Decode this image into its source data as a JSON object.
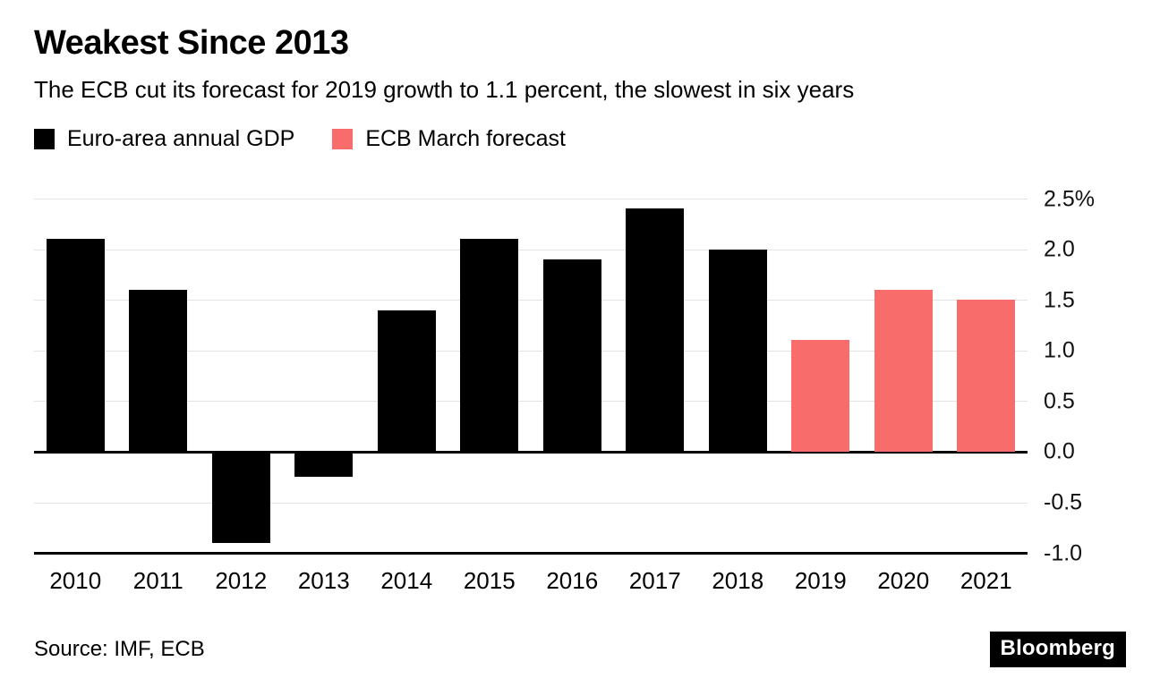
{
  "page": {
    "title": "Weakest Since 2013",
    "subtitle": "The ECB cut its forecast for 2019 growth to 1.1 percent, the slowest in six years",
    "source": "Source: IMF, ECB",
    "brand": "Bloomberg"
  },
  "legend": [
    {
      "label": "Euro-area annual GDP",
      "color": "#000000"
    },
    {
      "label": "ECB March forecast",
      "color": "#F86C6C"
    }
  ],
  "chart_data": {
    "type": "bar",
    "title": "Weakest Since 2013",
    "subtitle": "The ECB cut its forecast for 2019 growth to 1.1 percent, the slowest in six years",
    "categories": [
      "2010",
      "2011",
      "2012",
      "2013",
      "2014",
      "2015",
      "2016",
      "2017",
      "2018",
      "2019",
      "2020",
      "2021"
    ],
    "series": [
      {
        "name": "Euro-area annual GDP",
        "color": "#000000",
        "values": [
          2.1,
          1.6,
          -0.9,
          -0.25,
          1.4,
          2.1,
          1.9,
          2.4,
          2.0,
          null,
          null,
          null
        ]
      },
      {
        "name": "ECB March forecast",
        "color": "#F86C6C",
        "values": [
          null,
          null,
          null,
          null,
          null,
          null,
          null,
          null,
          null,
          1.1,
          1.6,
          1.5
        ]
      }
    ],
    "xlabel": "",
    "ylabel": "",
    "ylim": [
      -1.0,
      2.5
    ],
    "yticks": [
      {
        "value": 2.5,
        "label": "2.5%"
      },
      {
        "value": 2.0,
        "label": "2.0"
      },
      {
        "value": 1.5,
        "label": "1.5"
      },
      {
        "value": 1.0,
        "label": "1.0"
      },
      {
        "value": 0.5,
        "label": "0.5"
      },
      {
        "value": 0.0,
        "label": "0.0"
      },
      {
        "value": -0.5,
        "label": "-0.5"
      },
      {
        "value": -1.0,
        "label": "-1.0"
      }
    ],
    "grid": true,
    "legend_position": "top",
    "source": "Source: IMF, ECB"
  }
}
